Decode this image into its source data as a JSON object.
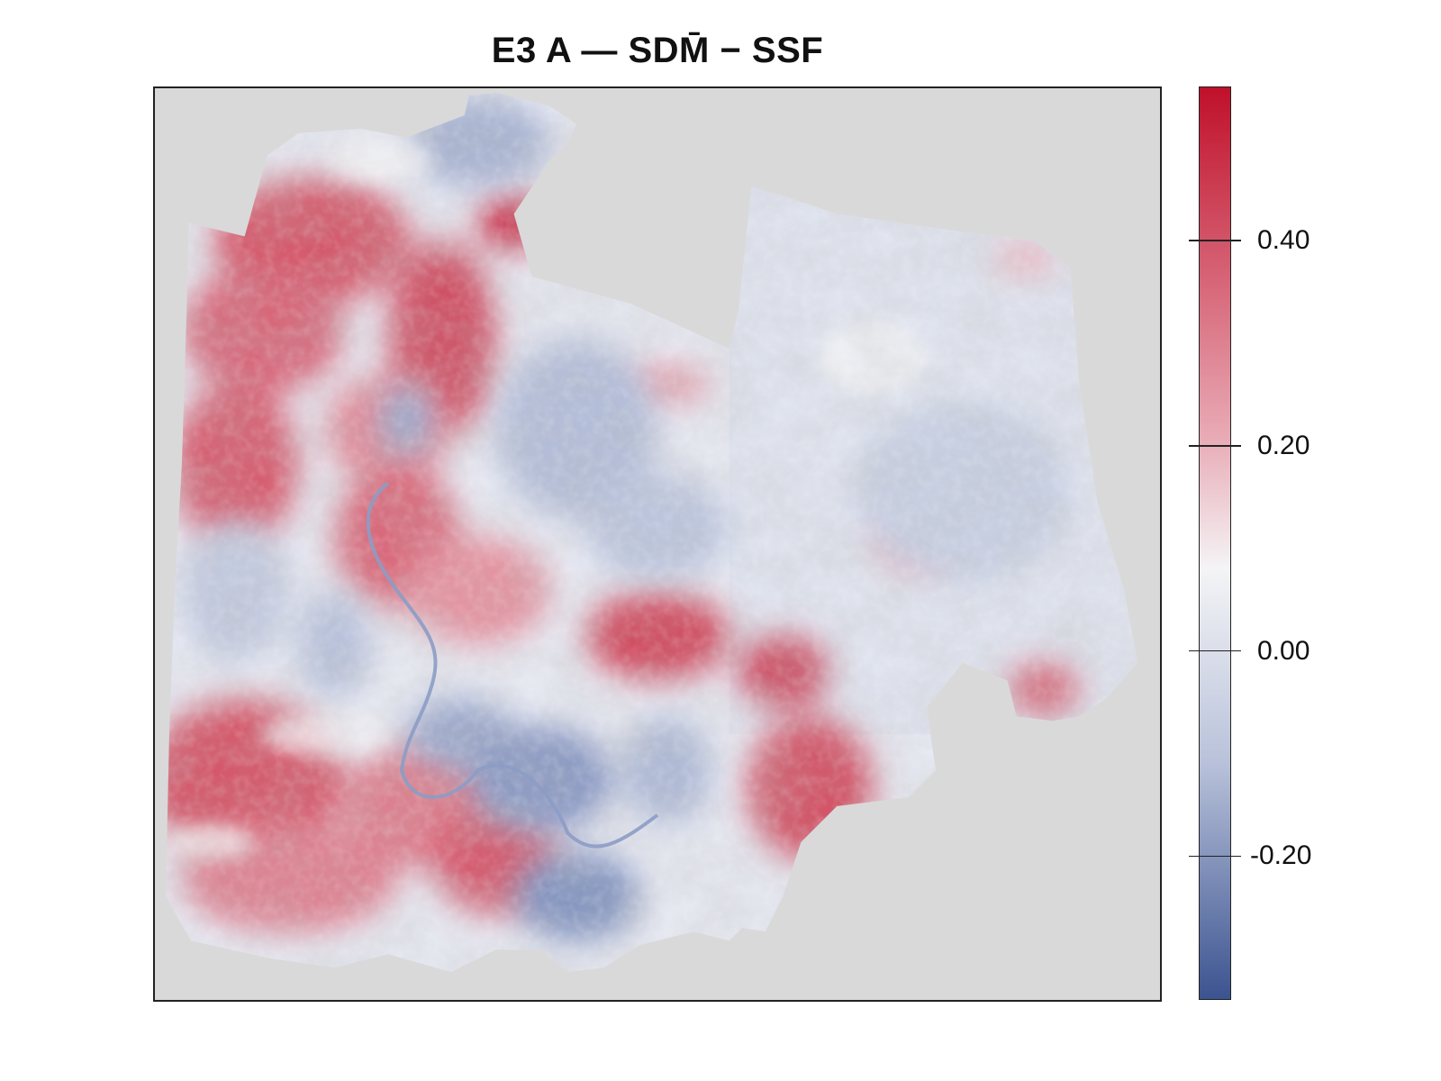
{
  "title": "E3 A — SDM̄ − SSF",
  "colors": {
    "low": "#3b5390",
    "mid": "#f4f4f6",
    "high": "#c0102a",
    "background": "#d9d9d9"
  },
  "legend": {
    "min": -0.34,
    "max": 0.55,
    "ticks": [
      {
        "value": 0.4,
        "label": "0.40"
      },
      {
        "value": 0.2,
        "label": "0.20"
      },
      {
        "value": 0.0,
        "label": "0.00"
      },
      {
        "value": -0.2,
        "label": "-0.20"
      }
    ]
  }
}
